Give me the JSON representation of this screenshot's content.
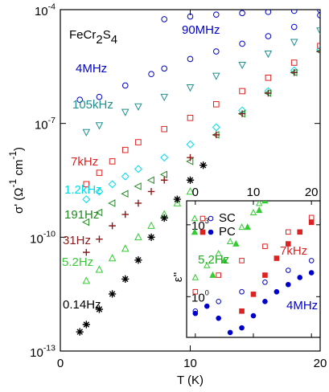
{
  "chart_data": [
    {
      "type": "scatter",
      "title": [
        "FeCr",
        "2",
        "S",
        "4"
      ],
      "x_label": "T (K)",
      "y_label": [
        "σ' (Ω",
        "-1",
        " cm",
        "-1",
        ")"
      ],
      "xlim": [
        0,
        20
      ],
      "xticks": [
        0,
        10,
        20
      ],
      "ylim": [
        1e-13,
        0.0001
      ],
      "y_scale": "log",
      "yticks": [
        {
          "value": 1e-13,
          "label": "10",
          "exponent": "-13"
        },
        {
          "value": 1e-10,
          "label": "10",
          "exponent": "-10"
        },
        {
          "value": 1e-07,
          "label": "10",
          "exponent": "-7"
        },
        {
          "value": 0.0001,
          "label": "10",
          "exponent": "-4"
        }
      ],
      "series": [
        {
          "name": "90MHz",
          "color": "#0000cc",
          "marker": "circle",
          "x": [
            8,
            10,
            12,
            14,
            16,
            18,
            20
          ],
          "values": [
            5.6e-05,
            6.6e-05,
            7.4e-05,
            8.1e-05,
            8.7e-05,
            9.3e-05,
            9.8e-05
          ]
        },
        {
          "name": "4MHz",
          "color": "#0000cc",
          "marker": "circle",
          "x": [
            1.5,
            3,
            5,
            7,
            8,
            10,
            12,
            14,
            16,
            18,
            20
          ],
          "values": [
            4.2e-07,
            5e-07,
            1e-06,
            2e-06,
            2.8e-06,
            5e-06,
            7.9e-06,
            1.26e-05,
            2e-05,
            3.5e-05,
            7.1e-05
          ]
        },
        {
          "name": "105kHz",
          "color": "#1f8f8f",
          "marker": "triangle-down",
          "x": [
            2,
            3,
            5,
            6,
            8,
            10,
            12,
            14,
            16,
            18,
            20
          ],
          "values": [
            5.9e-08,
            8.9e-08,
            2e-07,
            2.8e-07,
            5e-07,
            8.9e-07,
            1.8e-06,
            3.5e-06,
            6.9e-06,
            1.4e-05,
            2.8e-05
          ]
        },
        {
          "name": "7kHz",
          "color": "#dd2222",
          "marker": "square",
          "x": [
            2,
            3,
            4,
            5,
            6,
            8,
            10,
            12,
            14,
            16,
            18,
            20
          ],
          "values": [
            2.5e-09,
            5e-09,
            1e-08,
            2e-08,
            3.2e-08,
            7.1e-08,
            1.4e-07,
            3.2e-07,
            7.1e-07,
            1.6e-06,
            4e-06,
            1.1e-05
          ]
        },
        {
          "name": "1.2kHz",
          "color": "#00dde8",
          "marker": "diamond",
          "x": [
            2,
            3,
            4,
            5,
            6,
            8,
            10,
            12,
            14,
            16,
            18,
            20
          ],
          "values": [
            1e-09,
            1.6e-09,
            2.5e-09,
            4e-09,
            6.3e-09,
            1.26e-08,
            2.8e-08,
            7.9e-08,
            2.2e-07,
            7.1e-07,
            2.5e-06,
            8.9e-06
          ]
        },
        {
          "name": "191Hz",
          "color": "#228b22",
          "marker": "triangle-left",
          "x": [
            2,
            3,
            4,
            5,
            6,
            7,
            8,
            10,
            12,
            14,
            16,
            18,
            20
          ],
          "values": [
            2.5e-10,
            4.5e-10,
            7.9e-10,
            1.4e-09,
            2.2e-09,
            3.2e-09,
            4.5e-09,
            1e-08,
            5e-08,
            1.8e-07,
            6.3e-07,
            2.2e-06,
            7.9e-06
          ]
        },
        {
          "name": "31Hz",
          "color": "#8b1a1a",
          "marker": "plus",
          "x": [
            2,
            3,
            4,
            5,
            6,
            7,
            8,
            10,
            12,
            14,
            16,
            18,
            20
          ],
          "values": [
            4e-11,
            8.9e-11,
            2e-10,
            4e-10,
            7.9e-10,
            1.6e-09,
            3.2e-09,
            1.26e-08,
            5e-08,
            1.8e-07,
            6.3e-07,
            2.2e-06,
            7.9e-06
          ]
        },
        {
          "name": "5.2Hz",
          "color": "#33cc33",
          "marker": "triangle-up",
          "x": [
            2,
            3,
            4,
            5,
            6,
            7,
            8,
            9,
            10
          ],
          "values": [
            7.1e-12,
            1.4e-11,
            2.8e-11,
            5e-11,
            1e-10,
            2e-10,
            4e-10,
            7.9e-10,
            1.6e-09
          ]
        },
        {
          "name": "0.14Hz",
          "color": "#000000",
          "marker": "asterisk",
          "x": [
            1.5,
            2,
            3,
            4,
            5,
            6,
            7,
            8,
            9,
            10,
            11
          ],
          "values": [
            3.2e-13,
            5e-13,
            1.26e-12,
            3.2e-12,
            7.9e-12,
            2.5e-11,
            1e-10,
            3.2e-10,
            1e-09,
            3.2e-09,
            7.9e-09
          ]
        }
      ]
    },
    {
      "type": "scatter",
      "y_label": "ε''",
      "xlim": [
        -1.5,
        21.5
      ],
      "xticks": [
        0,
        10,
        20
      ],
      "ylim": [
        0.02,
        10000
      ],
      "y_scale": "log",
      "yticks": [
        {
          "value": 1,
          "label": "10",
          "exponent": "0"
        },
        {
          "value": 1000,
          "label": "10",
          "exponent": "3"
        }
      ],
      "legend": [
        "SC",
        "PC"
      ],
      "annotations": [
        {
          "text": "5.2Hz",
          "color": "#22aa22"
        },
        {
          "text": "7kHz",
          "color": "#dd2222"
        },
        {
          "text": "4MHz",
          "color": "#0000cc"
        }
      ],
      "series": [
        {
          "color": "#33cc33",
          "marker": "triangle-up",
          "filled": false,
          "x": [
            0,
            2,
            4,
            6,
            8,
            10,
            11
          ],
          "values": [
            6.3,
            20,
            63,
            200,
            790,
            3200,
            7900
          ]
        },
        {
          "color": "#33cc33",
          "marker": "triangle-up",
          "filled": true,
          "x": [
            3,
            5,
            7,
            9,
            11,
            12
          ],
          "values": [
            7.9,
            32,
            160,
            790,
            4000,
            10000
          ]
        },
        {
          "color": "#dd2222",
          "marker": "square",
          "filled": false,
          "x": [
            0,
            4,
            8,
            12,
            16,
            20
          ],
          "values": [
            1.6,
            7.9,
            32,
            126,
            500,
            2000
          ]
        },
        {
          "color": "#dd2222",
          "marker": "square",
          "filled": true,
          "x": [
            8,
            10,
            12,
            14,
            16,
            18,
            20
          ],
          "values": [
            0.25,
            1.26,
            7.9,
            40,
            160,
            500,
            1260
          ]
        },
        {
          "color": "#0000cc",
          "marker": "circle",
          "filled": false,
          "x": [
            0,
            4,
            8,
            12,
            16,
            20
          ],
          "values": [
            0.25,
            0.63,
            1.6,
            4.0,
            12.6,
            32
          ]
        },
        {
          "color": "#0000cc",
          "marker": "circle",
          "filled": true,
          "x": [
            0,
            2,
            4,
            6,
            8,
            10,
            12,
            14,
            16,
            18,
            20
          ],
          "values": [
            0.2,
            0.4,
            0.126,
            0.032,
            0.05,
            0.16,
            0.63,
            1.6,
            3.2,
            6.3,
            10
          ]
        }
      ]
    }
  ]
}
